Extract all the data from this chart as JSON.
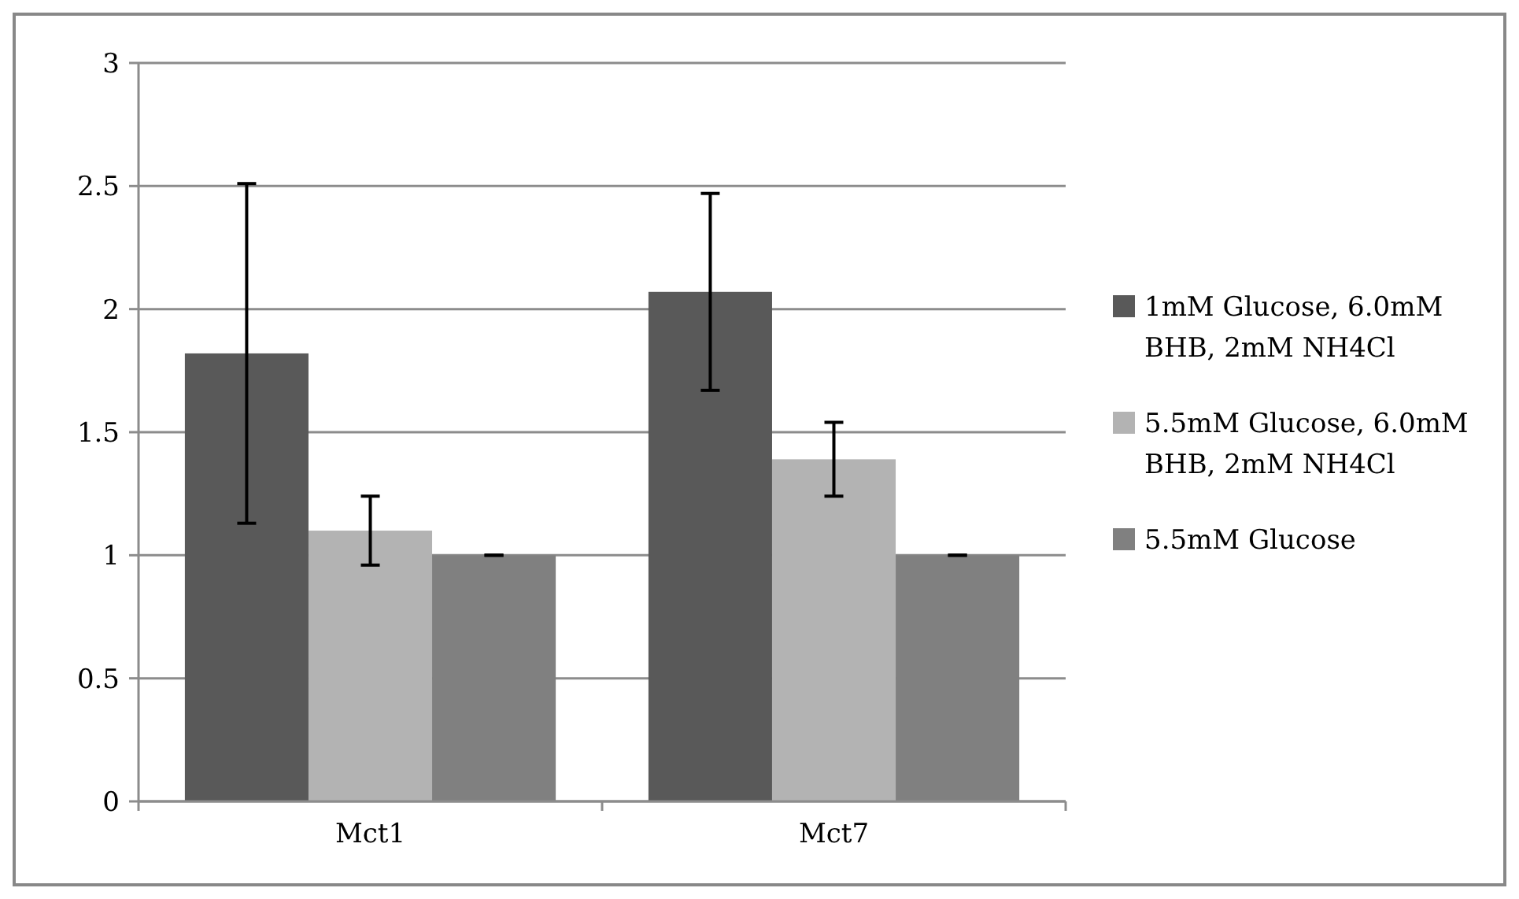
{
  "chart_data": {
    "type": "bar",
    "categories": [
      "Mct1",
      "Mct7"
    ],
    "series": [
      {
        "name": "1mM Glucose, 6.0mM BHB, 2mM NH4Cl",
        "color": "#595959",
        "values": [
          1.82,
          2.07
        ],
        "errors": [
          0.69,
          0.4
        ]
      },
      {
        "name": "5.5mM Glucose, 6.0mM BHB, 2mM NH4Cl",
        "color": "#b3b3b3",
        "values": [
          1.1,
          1.39
        ],
        "errors": [
          0.14,
          0.15
        ]
      },
      {
        "name": "5.5mM Glucose",
        "color": "#808080",
        "values": [
          1,
          1
        ],
        "errors": [
          0,
          0
        ]
      }
    ],
    "ylim": [
      0,
      3
    ],
    "yticks": [
      0,
      0.5,
      1,
      1.5,
      2,
      2.5,
      3
    ],
    "grid": "y",
    "legend": "right"
  }
}
